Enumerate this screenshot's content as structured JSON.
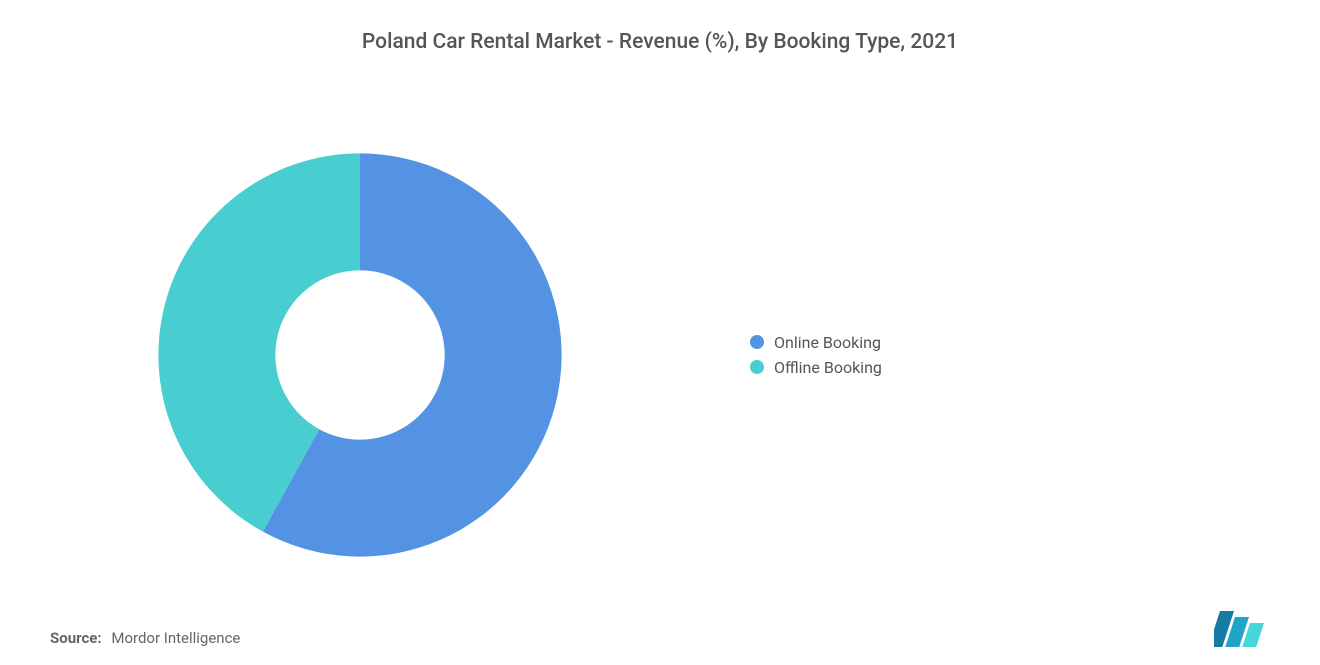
{
  "title": "Poland Car Rental Market - Revenue (%), By Booking Type, 2021",
  "title_fontsize": 21,
  "title_color": "#555555",
  "background_color": "#ffffff",
  "chart": {
    "type": "donut",
    "series": [
      {
        "label": "Online Booking",
        "value": 58,
        "color": "#5493e3"
      },
      {
        "label": "Offline Booking",
        "value": 42,
        "color": "#48cdd1"
      }
    ],
    "inner_radius_pct": 42,
    "outer_radius_pct": 100,
    "start_angle_deg": 0,
    "legend_position": "right",
    "legend_fontsize": 16,
    "legend_text_color": "#555555"
  },
  "source": {
    "label": "Source:",
    "name": "Mordor Intelligence",
    "fontsize": 15,
    "text_color": "#666666"
  },
  "logo": {
    "name": "mordor-intelligence-logo",
    "bar_colors": [
      "#157ba4",
      "#1fa3c9",
      "#45d6d9"
    ]
  }
}
